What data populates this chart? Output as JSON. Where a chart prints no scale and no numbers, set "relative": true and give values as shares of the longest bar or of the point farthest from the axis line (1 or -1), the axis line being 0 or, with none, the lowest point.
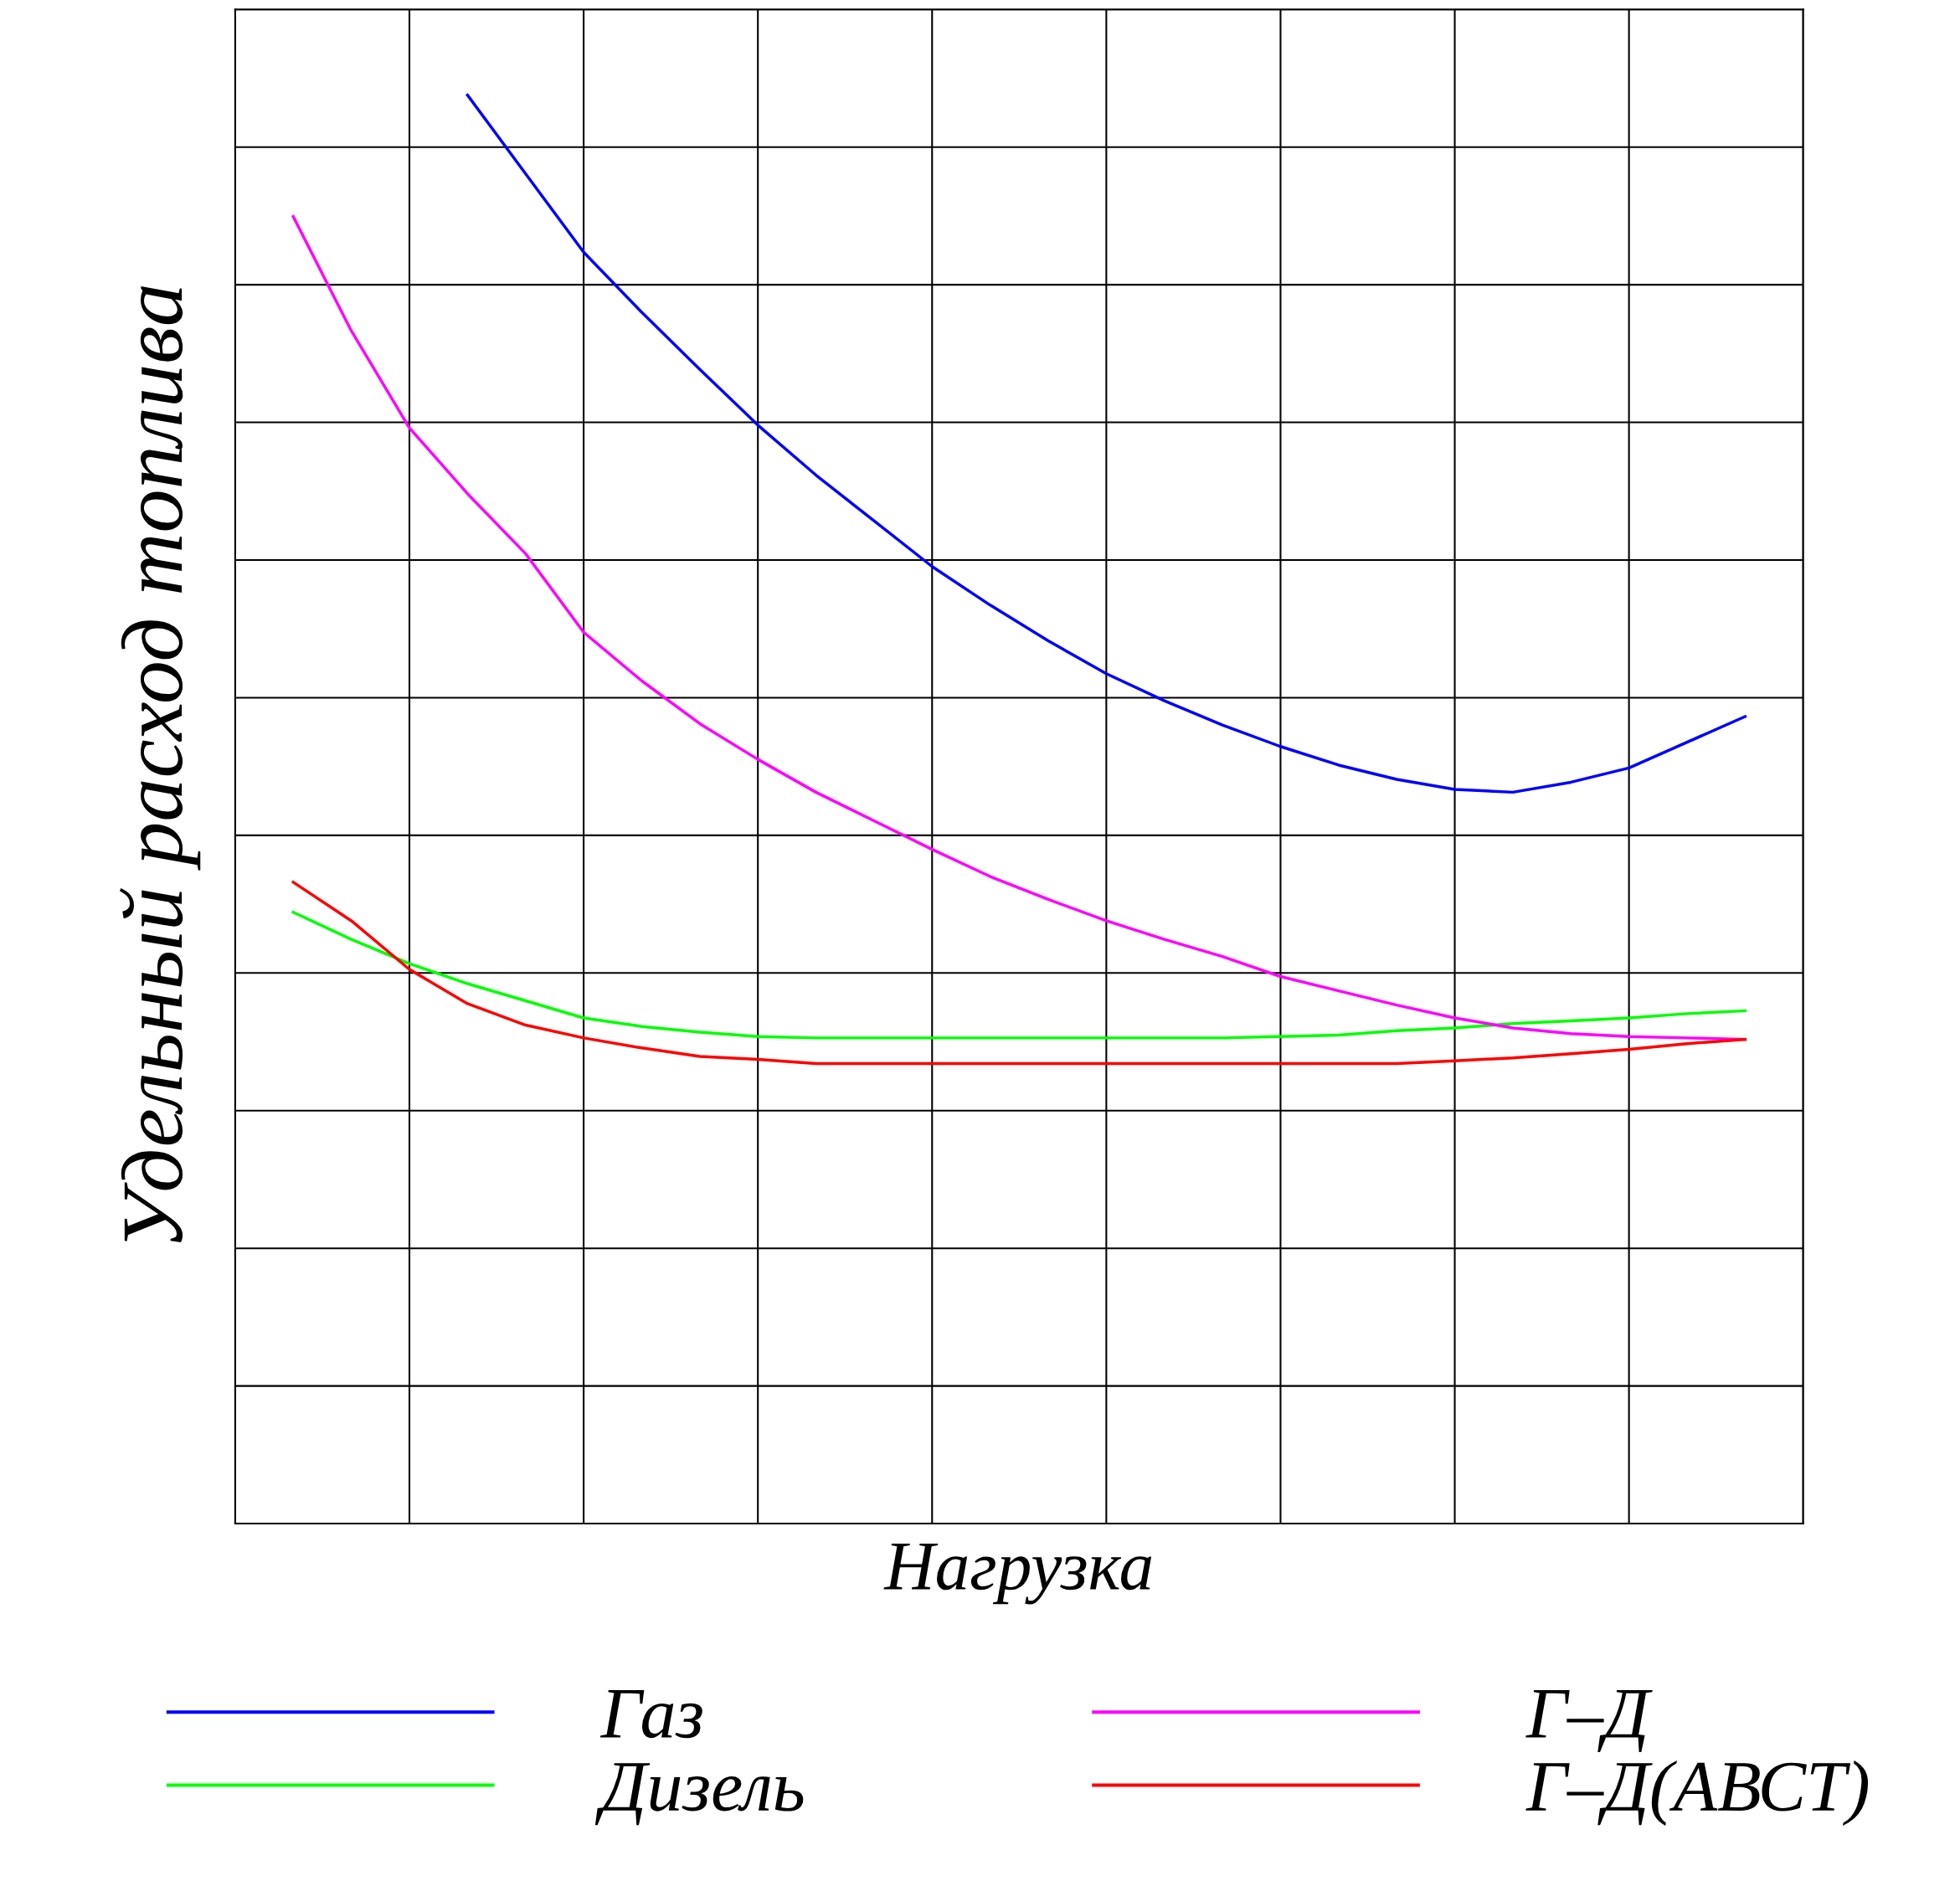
{
  "chart_data": {
    "type": "line",
    "relative": true,
    "xlabel": "Нагрузка",
    "ylabel": "Удельный расход топлива",
    "categories": [
      null,
      null,
      null,
      null,
      null,
      null,
      null,
      null,
      null,
      null,
      null,
      null,
      null,
      null,
      null,
      null,
      null,
      null,
      null,
      null,
      null,
      null,
      null,
      null,
      null,
      null,
      null,
      null
    ],
    "series": [
      {
        "name": "Газ",
        "color": "#0000ff",
        "values": [
          null,
          null,
          null,
          null,
          1.0,
          0.945,
          0.89,
          0.848,
          0.808,
          0.769,
          0.734,
          0.702,
          0.67,
          0.643,
          0.618,
          0.595,
          0.576,
          0.559,
          0.544,
          0.531,
          0.521,
          0.514,
          0.512,
          0.519,
          0.529,
          0.547,
          0.565,
          null
        ]
      },
      {
        "name": "Дизель",
        "color": "#00ff00",
        "values": [
          null,
          0.428,
          0.409,
          0.392,
          0.378,
          0.366,
          0.354,
          0.348,
          0.344,
          0.341,
          0.34,
          0.34,
          0.34,
          0.34,
          0.34,
          0.34,
          0.34,
          0.34,
          0.341,
          0.342,
          0.345,
          0.347,
          0.35,
          0.352,
          0.354,
          0.357,
          0.359,
          null
        ]
      },
      {
        "name": "Г–Д",
        "color": "#ff00ff",
        "values": [
          null,
          0.915,
          0.835,
          0.767,
          0.721,
          0.679,
          0.624,
          0.59,
          0.56,
          0.535,
          0.512,
          0.492,
          0.472,
          0.453,
          0.437,
          0.422,
          0.409,
          0.397,
          0.383,
          0.373,
          0.363,
          0.354,
          0.347,
          0.343,
          0.341,
          0.34,
          0.339,
          null
        ]
      },
      {
        "name": "Г–Д(АВСТ)",
        "color": "#ff0000",
        "values": [
          null,
          0.449,
          0.422,
          0.388,
          0.364,
          0.349,
          0.34,
          0.333,
          0.327,
          0.325,
          0.322,
          0.322,
          0.322,
          0.322,
          0.322,
          0.322,
          0.322,
          0.322,
          0.322,
          0.322,
          0.322,
          0.324,
          0.326,
          0.329,
          0.332,
          0.336,
          0.339,
          null
        ]
      }
    ],
    "grid": true,
    "legend": "bottom",
    "marker": "none",
    "line_style": "solid"
  }
}
